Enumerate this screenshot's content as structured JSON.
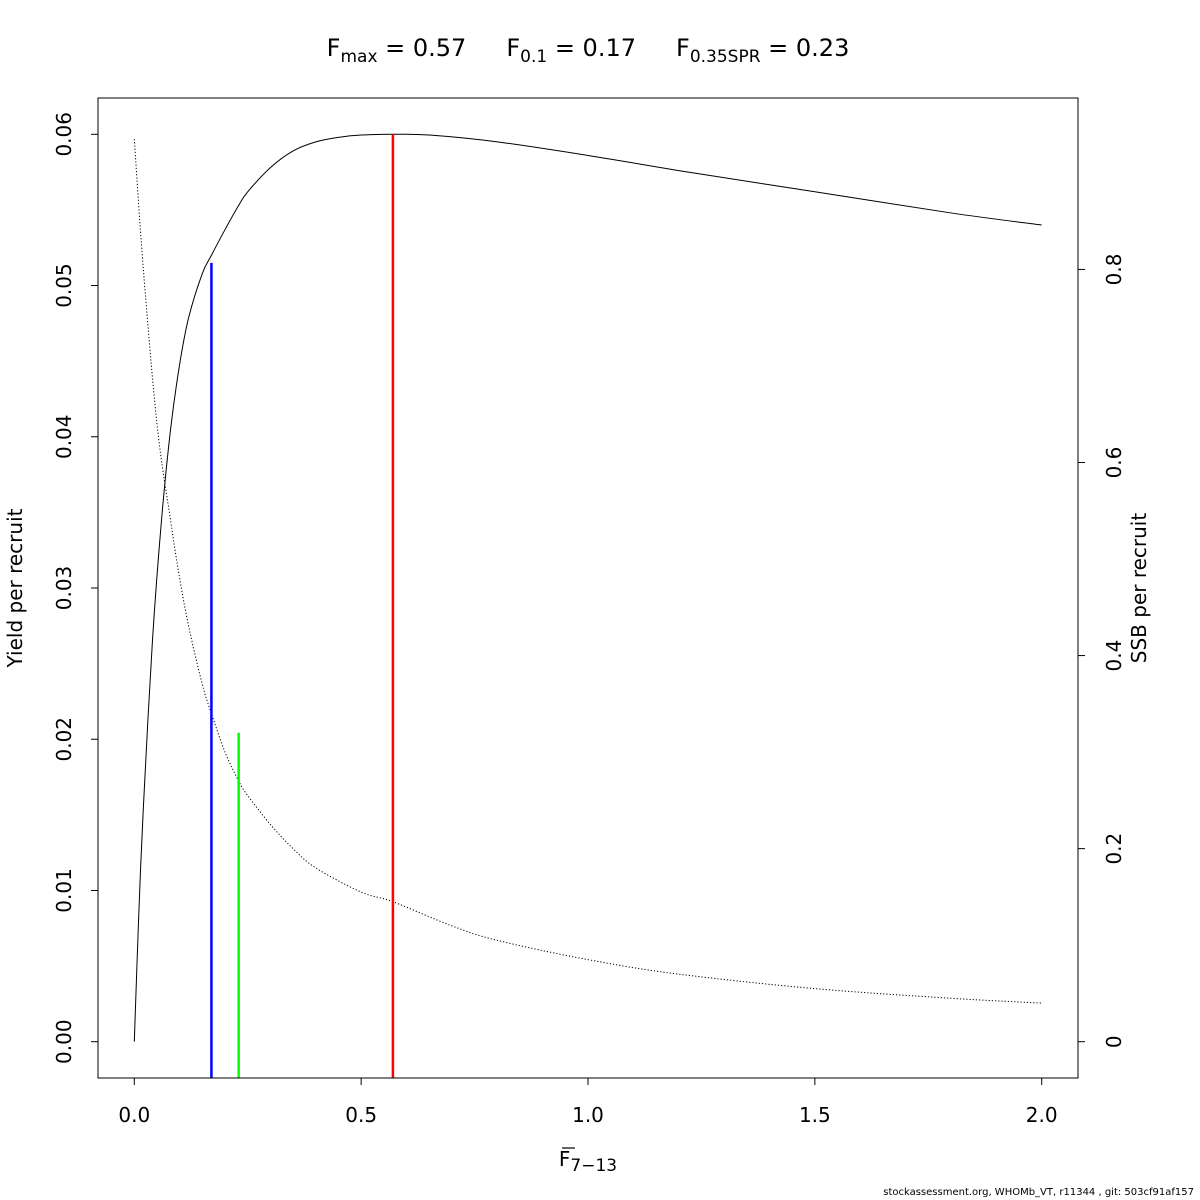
{
  "chart_data": {
    "type": "line",
    "title_parts": [
      {
        "sym": "F",
        "sub": "max",
        "eq": " = 0.57"
      },
      {
        "sym": "F",
        "sub": "0.1",
        "eq": " = 0.17"
      },
      {
        "sym": "F",
        "sub": "0.35SPR",
        "eq": " = 0.23"
      }
    ],
    "xlabel": {
      "sym": "F",
      "sub": "7−13"
    },
    "ylabel_left": "Yield per recruit",
    "ylabel_right": "SSB per recruit",
    "xlim": [
      -0.08,
      2.08
    ],
    "ylim_left": [
      -0.0024,
      0.0624
    ],
    "ylim_right": [
      -0.0376,
      0.9776
    ],
    "xticks": [
      0.0,
      0.5,
      1.0,
      1.5,
      2.0
    ],
    "xtick_labels": [
      "0.0",
      "0.5",
      "1.0",
      "1.5",
      "2.0"
    ],
    "yticks_left": [
      0.0,
      0.01,
      0.02,
      0.03,
      0.04,
      0.05,
      0.06
    ],
    "ytick_labels_left": [
      "0.00",
      "0.01",
      "0.02",
      "0.03",
      "0.04",
      "0.05",
      "0.06"
    ],
    "yticks_right": [
      0,
      0.2,
      0.4,
      0.6,
      0.8
    ],
    "ytick_labels_right": [
      "0",
      "0.2",
      "0.4",
      "0.6",
      "0.8"
    ],
    "series": [
      {
        "axis": "left",
        "style": "solid",
        "color": "#000000",
        "x": [
          0,
          0.01,
          0.02,
          0.04,
          0.06,
          0.08,
          0.1,
          0.12,
          0.15,
          0.17,
          0.2,
          0.23,
          0.25,
          0.3,
          0.35,
          0.4,
          0.45,
          0.5,
          0.57,
          0.65,
          0.8,
          1.0,
          1.2,
          1.5,
          1.8,
          2.0
        ],
        "y": [
          0,
          0.0085,
          0.0155,
          0.0265,
          0.0345,
          0.0405,
          0.0448,
          0.0479,
          0.0508,
          0.052,
          0.0537,
          0.0553,
          0.0562,
          0.0578,
          0.0589,
          0.0595,
          0.0598,
          0.05995,
          0.06,
          0.05995,
          0.0595,
          0.0586,
          0.0576,
          0.0562,
          0.0548,
          0.054
        ]
      },
      {
        "axis": "right",
        "style": "dotted",
        "color": "#000000",
        "x": [
          0,
          0.02,
          0.05,
          0.08,
          0.1,
          0.12,
          0.15,
          0.17,
          0.2,
          0.23,
          0.25,
          0.3,
          0.35,
          0.4,
          0.5,
          0.57,
          0.7,
          0.8,
          1.0,
          1.2,
          1.5,
          1.8,
          2.0
        ],
        "y": [
          0.935,
          0.8,
          0.64,
          0.54,
          0.48,
          0.43,
          0.37,
          0.34,
          0.3,
          0.27,
          0.255,
          0.225,
          0.2,
          0.18,
          0.155,
          0.145,
          0.12,
          0.105,
          0.085,
          0.07,
          0.055,
          0.045,
          0.04
        ]
      }
    ],
    "reference_lines": [
      {
        "x": 0.57,
        "axis": "left",
        "y_top": 0.06,
        "color": "#ff0000"
      },
      {
        "x": 0.17,
        "axis": "left",
        "y_top": 0.0515,
        "color": "#0000ff"
      },
      {
        "x": 0.23,
        "axis": "right",
        "y_top": 0.32,
        "color": "#00ff00"
      }
    ]
  },
  "footer": "stockassessment.org, WHOMb_VT, r11344 , git: 503cf91af157"
}
